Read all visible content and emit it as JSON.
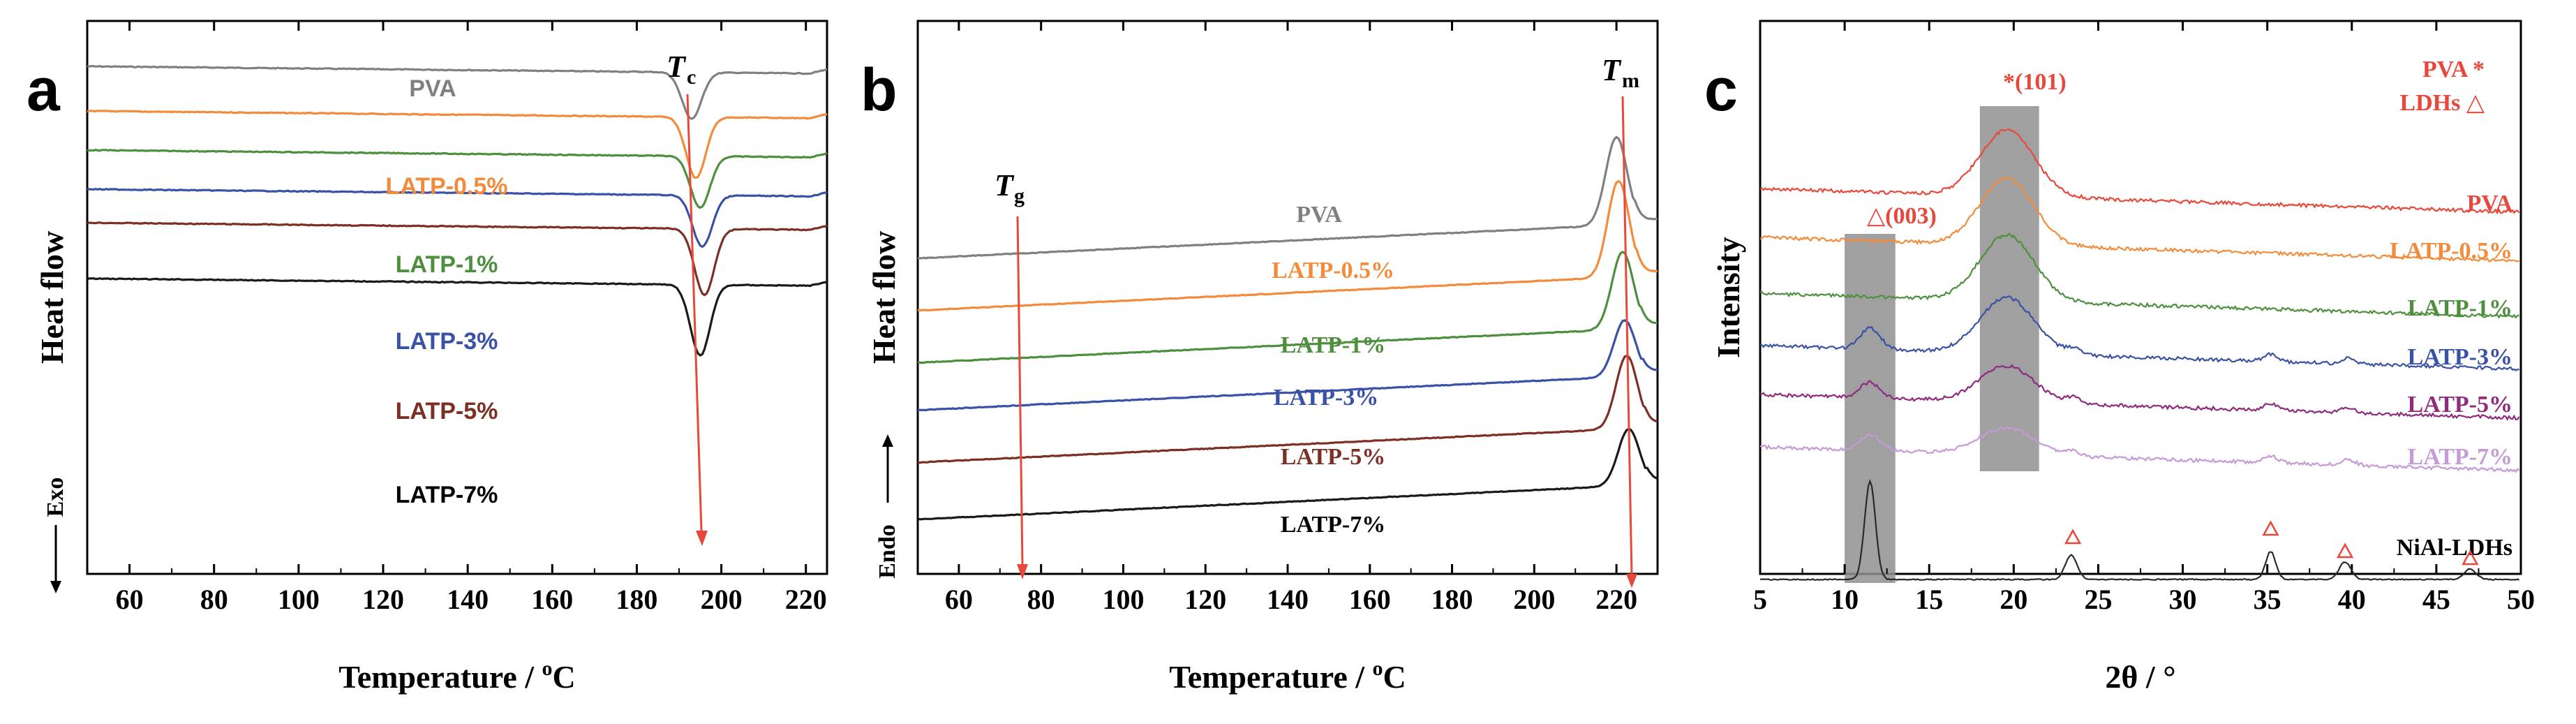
{
  "colors": {
    "PVA": "#808080",
    "LATP-0.5%": "#F28C3C",
    "LATP-1%": "#4E8F3E",
    "LATP-3%": "#3A52A5",
    "LATP-5%": "#7D2F24",
    "LATP-7%": "#1a1a1a",
    "c_PVA": "#E8483B",
    "c_LATP-0.5%": "#F28C3C",
    "c_LATP-1%": "#4E8F3E",
    "c_LATP-3%": "#3A52A5",
    "c_LATP-5%": "#8E2B7E",
    "c_LATP-7%": "#C59AD6",
    "c_NiAl-LDHs": "#2a2a2a",
    "arrow": "#E8483B",
    "shade": "#8f8f8f"
  },
  "chart_data": [
    {
      "panel": "a",
      "type": "line",
      "xlabel": "Temperature / °C",
      "ylabel": "Heat flow",
      "xlim": [
        50,
        225
      ],
      "xticks": [
        "60",
        "80",
        "100",
        "120",
        "140",
        "160",
        "180",
        "200",
        "220"
      ],
      "exo_label": "Exo",
      "annotation": {
        "main": "T",
        "sub": "c"
      },
      "series": [
        {
          "name": "PVA",
          "label": "PVA",
          "offset": 0.0,
          "peak": 193,
          "depth": 0.95
        },
        {
          "name": "LATP-0.5%",
          "label": "LATP-0.5%",
          "offset": 1.6,
          "peak": 194,
          "depth": 1.25
        },
        {
          "name": "LATP-1%",
          "label": "LATP-1%",
          "offset": 3.0,
          "peak": 195,
          "depth": 1.05
        },
        {
          "name": "LATP-3%",
          "label": "LATP-3%",
          "offset": 4.4,
          "peak": 195.5,
          "depth": 1.05
        },
        {
          "name": "LATP-5%",
          "label": "LATP-5%",
          "offset": 5.6,
          "peak": 196,
          "depth": 1.35
        },
        {
          "name": "LATP-7%",
          "label": "LATP-7%",
          "offset": 7.6,
          "peak": 195,
          "depth": 1.45
        }
      ]
    },
    {
      "panel": "b",
      "type": "line",
      "xlabel": "Temperature / °C",
      "ylabel": "Heat flow",
      "xlim": [
        50,
        230
      ],
      "xticks": [
        "60",
        "80",
        "100",
        "120",
        "140",
        "160",
        "180",
        "200",
        "220"
      ],
      "endo_label": "Endo",
      "annotations": [
        {
          "main": "T",
          "sub": "g"
        },
        {
          "main": "T",
          "sub": "m"
        }
      ],
      "series": [
        {
          "name": "PVA",
          "label": "PVA",
          "offset": 0.0,
          "peak": 220,
          "height": 2.1
        },
        {
          "name": "LATP-0.5%",
          "label": "LATP-0.5%",
          "offset": 1.1,
          "peak": 220.5,
          "height": 2.3
        },
        {
          "name": "LATP-1%",
          "label": "LATP-1%",
          "offset": 2.2,
          "peak": 221.5,
          "height": 1.85
        },
        {
          "name": "LATP-3%",
          "label": "LATP-3%",
          "offset": 3.2,
          "peak": 222,
          "height": 1.35
        },
        {
          "name": "LATP-5%",
          "label": "LATP-5%",
          "offset": 4.3,
          "peak": 222.5,
          "height": 1.75
        },
        {
          "name": "LATP-7%",
          "label": "LATP-7%",
          "offset": 5.5,
          "peak": 223,
          "height": 1.35
        }
      ]
    },
    {
      "panel": "c",
      "type": "line",
      "xlabel": "2θ / °",
      "ylabel": "Intensity",
      "xlim": [
        5,
        50
      ],
      "xticks": [
        "5",
        "10",
        "15",
        "20",
        "25",
        "30",
        "35",
        "40",
        "45",
        "50"
      ],
      "legend": [
        "PVA *",
        "LDHs △"
      ],
      "peak_labels": [
        "*(101)",
        "△(003)"
      ],
      "shaded_ranges": [
        [
          10,
          13
        ],
        [
          18,
          21.5
        ]
      ],
      "ldh_markers": [
        23.5,
        35.2,
        39.6,
        47
      ],
      "series": [
        {
          "name": "PVA",
          "label": "PVA"
        },
        {
          "name": "LATP-0.5%",
          "label": "LATP-0.5%"
        },
        {
          "name": "LATP-1%",
          "label": "LATP-1%"
        },
        {
          "name": "LATP-3%",
          "label": "LATP-3%"
        },
        {
          "name": "LATP-5%",
          "label": "LATP-5%"
        },
        {
          "name": "LATP-7%",
          "label": "LATP-7%"
        },
        {
          "name": "NiAl-LDHs",
          "label": "NiAl-LDHs"
        }
      ]
    }
  ]
}
